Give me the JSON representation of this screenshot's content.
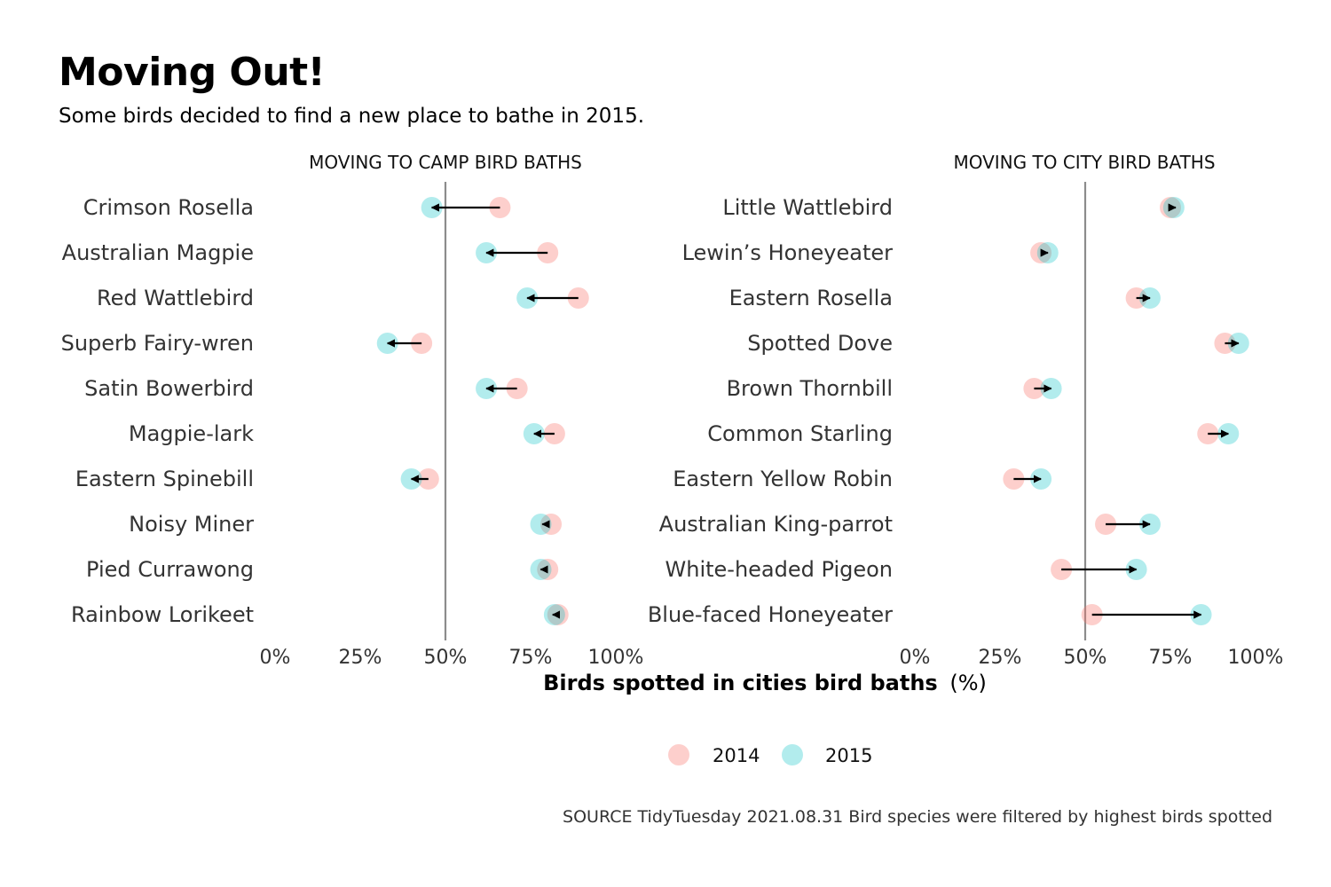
{
  "title": "Moving Out!",
  "subtitle": "Some birds decided to find a new place to bathe in 2015.",
  "caption": "SOURCE TidyTuesday 2021.08.31 Bird species were filtered by highest birds spotted",
  "colors": {
    "y2014": "#F8766D",
    "y2015": "#00BFC4",
    "reference_line": "#8c8c8c",
    "arrow": "#000000"
  },
  "chart_data": {
    "type": "dumbbell",
    "xlabel_bold": "Birds spotted in cities bird baths",
    "xlabel_unit": "(%)",
    "xlim": [
      0,
      100
    ],
    "x_ticks": [
      "0%",
      "25%",
      "50%",
      "75%",
      "100%"
    ],
    "reference_line": 50,
    "legend": {
      "position": "bottom",
      "entries": [
        "2014",
        "2015"
      ]
    },
    "panels": [
      {
        "facet_label": "MOVING TO CAMP BIRD BATHS",
        "rows": [
          {
            "bird": "Crimson Rosella",
            "y2014": 66,
            "y2015": 46
          },
          {
            "bird": "Australian Magpie",
            "y2014": 80,
            "y2015": 62
          },
          {
            "bird": "Red Wattlebird",
            "y2014": 89,
            "y2015": 74
          },
          {
            "bird": "Superb Fairy-wren",
            "y2014": 43,
            "y2015": 33
          },
          {
            "bird": "Satin Bowerbird",
            "y2014": 71,
            "y2015": 62
          },
          {
            "bird": "Magpie-lark",
            "y2014": 82,
            "y2015": 76
          },
          {
            "bird": "Eastern Spinebill",
            "y2014": 45,
            "y2015": 40
          },
          {
            "bird": "Noisy Miner",
            "y2014": 81,
            "y2015": 78
          },
          {
            "bird": "Pied Currawong",
            "y2014": 80,
            "y2015": 78
          },
          {
            "bird": "Rainbow Lorikeet",
            "y2014": 83,
            "y2015": 82
          }
        ]
      },
      {
        "facet_label": "MOVING TO CITY BIRD BATHS",
        "rows": [
          {
            "bird": "Little Wattlebird",
            "y2014": 75,
            "y2015": 76
          },
          {
            "bird": "Lewin’s Honeyeater",
            "y2014": 37,
            "y2015": 39
          },
          {
            "bird": "Eastern Rosella",
            "y2014": 65,
            "y2015": 69
          },
          {
            "bird": "Spotted Dove",
            "y2014": 91,
            "y2015": 95
          },
          {
            "bird": "Brown Thornbill",
            "y2014": 35,
            "y2015": 40
          },
          {
            "bird": "Common Starling",
            "y2014": 86,
            "y2015": 92
          },
          {
            "bird": "Eastern Yellow Robin",
            "y2014": 29,
            "y2015": 37
          },
          {
            "bird": "Australian King-parrot",
            "y2014": 56,
            "y2015": 69
          },
          {
            "bird": "White-headed Pigeon",
            "y2014": 43,
            "y2015": 65
          },
          {
            "bird": "Blue-faced Honeyeater",
            "y2014": 52,
            "y2015": 84
          }
        ]
      }
    ]
  }
}
